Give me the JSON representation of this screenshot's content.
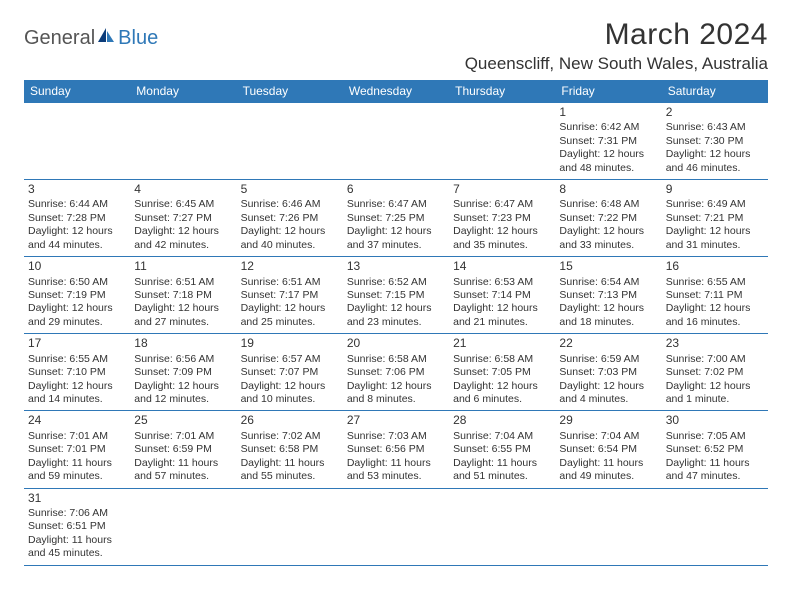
{
  "logo": {
    "word1": "General",
    "word2": "Blue"
  },
  "title": "March 2024",
  "location": "Queenscliff, New South Wales, Australia",
  "colors": {
    "header_bg": "#2f78b7",
    "header_fg": "#ffffff",
    "rule": "#2f78b7",
    "text": "#333333",
    "page_bg": "#ffffff"
  },
  "weekdays": [
    "Sunday",
    "Monday",
    "Tuesday",
    "Wednesday",
    "Thursday",
    "Friday",
    "Saturday"
  ],
  "weeks": [
    [
      null,
      null,
      null,
      null,
      null,
      {
        "day": "1",
        "sunrise": "Sunrise: 6:42 AM",
        "sunset": "Sunset: 7:31 PM",
        "daylight1": "Daylight: 12 hours",
        "daylight2": "and 48 minutes."
      },
      {
        "day": "2",
        "sunrise": "Sunrise: 6:43 AM",
        "sunset": "Sunset: 7:30 PM",
        "daylight1": "Daylight: 12 hours",
        "daylight2": "and 46 minutes."
      }
    ],
    [
      {
        "day": "3",
        "sunrise": "Sunrise: 6:44 AM",
        "sunset": "Sunset: 7:28 PM",
        "daylight1": "Daylight: 12 hours",
        "daylight2": "and 44 minutes."
      },
      {
        "day": "4",
        "sunrise": "Sunrise: 6:45 AM",
        "sunset": "Sunset: 7:27 PM",
        "daylight1": "Daylight: 12 hours",
        "daylight2": "and 42 minutes."
      },
      {
        "day": "5",
        "sunrise": "Sunrise: 6:46 AM",
        "sunset": "Sunset: 7:26 PM",
        "daylight1": "Daylight: 12 hours",
        "daylight2": "and 40 minutes."
      },
      {
        "day": "6",
        "sunrise": "Sunrise: 6:47 AM",
        "sunset": "Sunset: 7:25 PM",
        "daylight1": "Daylight: 12 hours",
        "daylight2": "and 37 minutes."
      },
      {
        "day": "7",
        "sunrise": "Sunrise: 6:47 AM",
        "sunset": "Sunset: 7:23 PM",
        "daylight1": "Daylight: 12 hours",
        "daylight2": "and 35 minutes."
      },
      {
        "day": "8",
        "sunrise": "Sunrise: 6:48 AM",
        "sunset": "Sunset: 7:22 PM",
        "daylight1": "Daylight: 12 hours",
        "daylight2": "and 33 minutes."
      },
      {
        "day": "9",
        "sunrise": "Sunrise: 6:49 AM",
        "sunset": "Sunset: 7:21 PM",
        "daylight1": "Daylight: 12 hours",
        "daylight2": "and 31 minutes."
      }
    ],
    [
      {
        "day": "10",
        "sunrise": "Sunrise: 6:50 AM",
        "sunset": "Sunset: 7:19 PM",
        "daylight1": "Daylight: 12 hours",
        "daylight2": "and 29 minutes."
      },
      {
        "day": "11",
        "sunrise": "Sunrise: 6:51 AM",
        "sunset": "Sunset: 7:18 PM",
        "daylight1": "Daylight: 12 hours",
        "daylight2": "and 27 minutes."
      },
      {
        "day": "12",
        "sunrise": "Sunrise: 6:51 AM",
        "sunset": "Sunset: 7:17 PM",
        "daylight1": "Daylight: 12 hours",
        "daylight2": "and 25 minutes."
      },
      {
        "day": "13",
        "sunrise": "Sunrise: 6:52 AM",
        "sunset": "Sunset: 7:15 PM",
        "daylight1": "Daylight: 12 hours",
        "daylight2": "and 23 minutes."
      },
      {
        "day": "14",
        "sunrise": "Sunrise: 6:53 AM",
        "sunset": "Sunset: 7:14 PM",
        "daylight1": "Daylight: 12 hours",
        "daylight2": "and 21 minutes."
      },
      {
        "day": "15",
        "sunrise": "Sunrise: 6:54 AM",
        "sunset": "Sunset: 7:13 PM",
        "daylight1": "Daylight: 12 hours",
        "daylight2": "and 18 minutes."
      },
      {
        "day": "16",
        "sunrise": "Sunrise: 6:55 AM",
        "sunset": "Sunset: 7:11 PM",
        "daylight1": "Daylight: 12 hours",
        "daylight2": "and 16 minutes."
      }
    ],
    [
      {
        "day": "17",
        "sunrise": "Sunrise: 6:55 AM",
        "sunset": "Sunset: 7:10 PM",
        "daylight1": "Daylight: 12 hours",
        "daylight2": "and 14 minutes."
      },
      {
        "day": "18",
        "sunrise": "Sunrise: 6:56 AM",
        "sunset": "Sunset: 7:09 PM",
        "daylight1": "Daylight: 12 hours",
        "daylight2": "and 12 minutes."
      },
      {
        "day": "19",
        "sunrise": "Sunrise: 6:57 AM",
        "sunset": "Sunset: 7:07 PM",
        "daylight1": "Daylight: 12 hours",
        "daylight2": "and 10 minutes."
      },
      {
        "day": "20",
        "sunrise": "Sunrise: 6:58 AM",
        "sunset": "Sunset: 7:06 PM",
        "daylight1": "Daylight: 12 hours",
        "daylight2": "and 8 minutes."
      },
      {
        "day": "21",
        "sunrise": "Sunrise: 6:58 AM",
        "sunset": "Sunset: 7:05 PM",
        "daylight1": "Daylight: 12 hours",
        "daylight2": "and 6 minutes."
      },
      {
        "day": "22",
        "sunrise": "Sunrise: 6:59 AM",
        "sunset": "Sunset: 7:03 PM",
        "daylight1": "Daylight: 12 hours",
        "daylight2": "and 4 minutes."
      },
      {
        "day": "23",
        "sunrise": "Sunrise: 7:00 AM",
        "sunset": "Sunset: 7:02 PM",
        "daylight1": "Daylight: 12 hours",
        "daylight2": "and 1 minute."
      }
    ],
    [
      {
        "day": "24",
        "sunrise": "Sunrise: 7:01 AM",
        "sunset": "Sunset: 7:01 PM",
        "daylight1": "Daylight: 11 hours",
        "daylight2": "and 59 minutes."
      },
      {
        "day": "25",
        "sunrise": "Sunrise: 7:01 AM",
        "sunset": "Sunset: 6:59 PM",
        "daylight1": "Daylight: 11 hours",
        "daylight2": "and 57 minutes."
      },
      {
        "day": "26",
        "sunrise": "Sunrise: 7:02 AM",
        "sunset": "Sunset: 6:58 PM",
        "daylight1": "Daylight: 11 hours",
        "daylight2": "and 55 minutes."
      },
      {
        "day": "27",
        "sunrise": "Sunrise: 7:03 AM",
        "sunset": "Sunset: 6:56 PM",
        "daylight1": "Daylight: 11 hours",
        "daylight2": "and 53 minutes."
      },
      {
        "day": "28",
        "sunrise": "Sunrise: 7:04 AM",
        "sunset": "Sunset: 6:55 PM",
        "daylight1": "Daylight: 11 hours",
        "daylight2": "and 51 minutes."
      },
      {
        "day": "29",
        "sunrise": "Sunrise: 7:04 AM",
        "sunset": "Sunset: 6:54 PM",
        "daylight1": "Daylight: 11 hours",
        "daylight2": "and 49 minutes."
      },
      {
        "day": "30",
        "sunrise": "Sunrise: 7:05 AM",
        "sunset": "Sunset: 6:52 PM",
        "daylight1": "Daylight: 11 hours",
        "daylight2": "and 47 minutes."
      }
    ],
    [
      {
        "day": "31",
        "sunrise": "Sunrise: 7:06 AM",
        "sunset": "Sunset: 6:51 PM",
        "daylight1": "Daylight: 11 hours",
        "daylight2": "and 45 minutes."
      },
      null,
      null,
      null,
      null,
      null,
      null
    ]
  ]
}
